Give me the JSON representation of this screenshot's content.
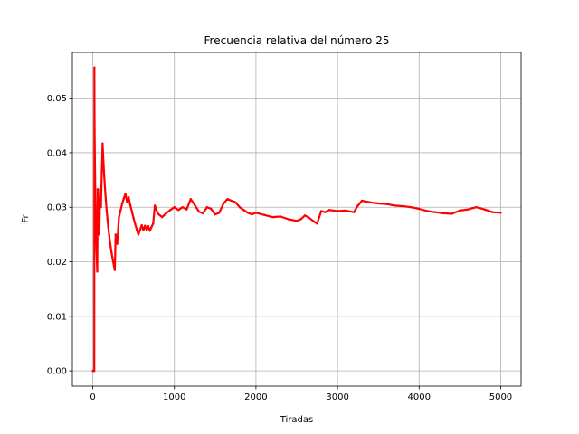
{
  "chart_data": {
    "type": "line",
    "title": "Frecuencia relativa del número 25",
    "xlabel": "Tiradas",
    "ylabel": "Fr",
    "xlim": [
      -250,
      5250
    ],
    "ylim": [
      -0.0028,
      0.0584
    ],
    "xticks": [
      0,
      1000,
      2000,
      3000,
      4000,
      5000
    ],
    "xtick_labels": [
      "0",
      "1000",
      "2000",
      "3000",
      "4000",
      "5000"
    ],
    "yticks": [
      0.0,
      0.01,
      0.02,
      0.03,
      0.04,
      0.05
    ],
    "ytick_labels": [
      "0.00",
      "0.01",
      "0.02",
      "0.03",
      "0.04",
      "0.05"
    ],
    "grid": true,
    "legend": "none",
    "series": [
      {
        "color": "#ff0000",
        "marker": "dot",
        "x": [
          1,
          5,
          10,
          15,
          18,
          20,
          22,
          25,
          30,
          36,
          40,
          45,
          50,
          55,
          60,
          65,
          70,
          75,
          80,
          90,
          100,
          110,
          120,
          130,
          140,
          150,
          160,
          170,
          180,
          190,
          200,
          210,
          220,
          230,
          240,
          250,
          260,
          270,
          280,
          290,
          300,
          320,
          340,
          360,
          380,
          400,
          420,
          440,
          460,
          480,
          500,
          520,
          540,
          560,
          580,
          600,
          620,
          640,
          660,
          680,
          700,
          720,
          740,
          760,
          780,
          800,
          850,
          900,
          950,
          1000,
          1050,
          1100,
          1150,
          1200,
          1250,
          1300,
          1350,
          1400,
          1450,
          1500,
          1550,
          1600,
          1650,
          1700,
          1750,
          1800,
          1850,
          1900,
          1950,
          2000,
          2100,
          2200,
          2300,
          2400,
          2500,
          2550,
          2600,
          2650,
          2700,
          2750,
          2800,
          2850,
          2900,
          3000,
          3100,
          3200,
          3250,
          3300,
          3400,
          3500,
          3600,
          3700,
          3800,
          3900,
          4000,
          4100,
          4200,
          4300,
          4400,
          4500,
          4600,
          4700,
          4800,
          4900,
          5000
        ],
        "y": [
          0.0,
          0.0,
          0.0,
          0.0,
          0.0,
          0.0556,
          0.0455,
          0.04,
          0.0333,
          0.0278,
          0.025,
          0.0222,
          0.02,
          0.0182,
          0.0333,
          0.0308,
          0.0286,
          0.0267,
          0.025,
          0.0333,
          0.03,
          0.0364,
          0.0417,
          0.0385,
          0.0357,
          0.0333,
          0.0313,
          0.0294,
          0.0278,
          0.0263,
          0.025,
          0.0238,
          0.0227,
          0.0217,
          0.0208,
          0.02,
          0.0192,
          0.0185,
          0.025,
          0.0241,
          0.0233,
          0.0281,
          0.0294,
          0.0306,
          0.0316,
          0.0325,
          0.031,
          0.0318,
          0.0304,
          0.0292,
          0.028,
          0.0269,
          0.0259,
          0.025,
          0.0259,
          0.0267,
          0.0258,
          0.0266,
          0.0258,
          0.0265,
          0.0257,
          0.0264,
          0.027,
          0.0303,
          0.0295,
          0.0288,
          0.0282,
          0.0289,
          0.0295,
          0.03,
          0.0295,
          0.03,
          0.0296,
          0.0315,
          0.0304,
          0.0292,
          0.0289,
          0.03,
          0.0297,
          0.0287,
          0.029,
          0.0306,
          0.0315,
          0.0312,
          0.0309,
          0.03,
          0.0295,
          0.029,
          0.0287,
          0.029,
          0.0286,
          0.0282,
          0.0283,
          0.0278,
          0.0275,
          0.0278,
          0.0285,
          0.0281,
          0.0275,
          0.027,
          0.0293,
          0.0291,
          0.0295,
          0.0293,
          0.0294,
          0.0291,
          0.0303,
          0.0312,
          0.0309,
          0.0307,
          0.0306,
          0.0303,
          0.0302,
          0.03,
          0.0297,
          0.0293,
          0.0291,
          0.0289,
          0.0288,
          0.0294,
          0.0296,
          0.03,
          0.0296,
          0.0291,
          0.029
        ]
      }
    ]
  }
}
